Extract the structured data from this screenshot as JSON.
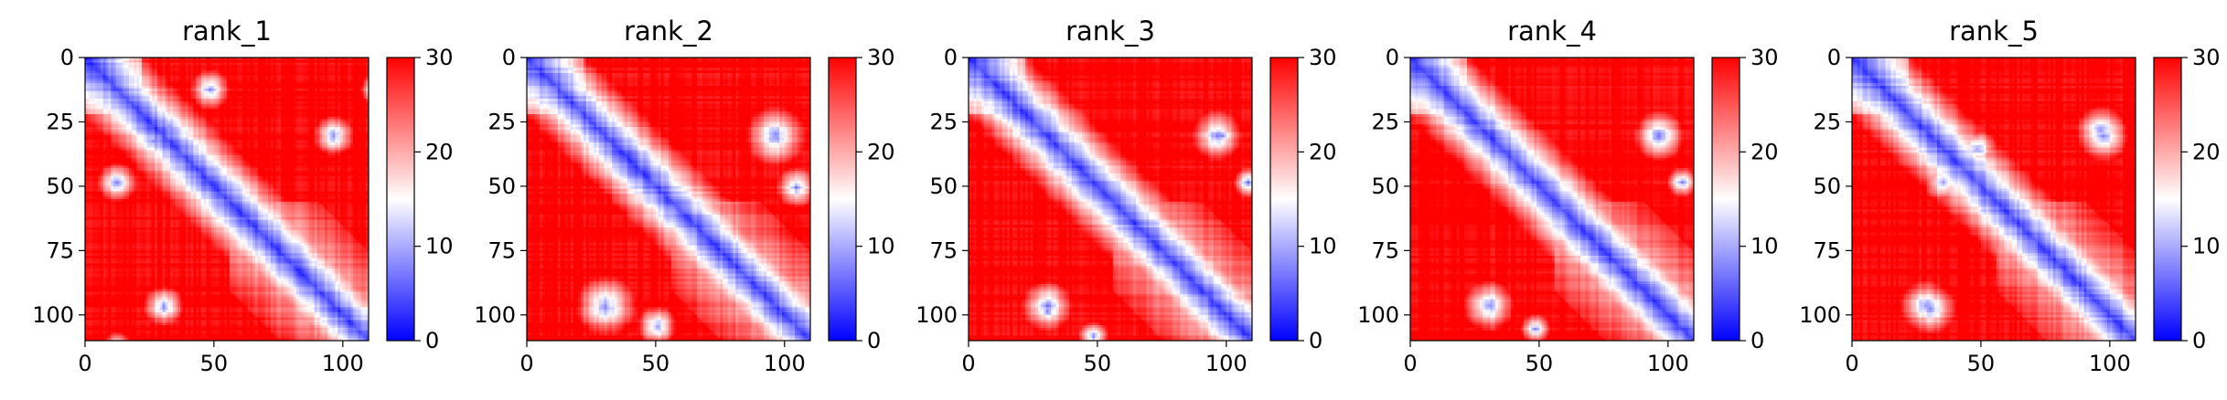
{
  "chart_data": [
    {
      "type": "heatmap",
      "title": "rank_1",
      "xlabel": "",
      "ylabel": "",
      "x_ticks": [
        "0",
        "50",
        "100"
      ],
      "y_ticks": [
        "0",
        "25",
        "50",
        "75",
        "100"
      ],
      "xlim": [
        0,
        110
      ],
      "ylim": [
        110,
        0
      ],
      "colorbar": {
        "ticks": [
          "0",
          "10",
          "20",
          "30"
        ],
        "range": [
          0,
          30
        ],
        "colormap": [
          "#0000ff",
          "#ffffff",
          "#ff0000"
        ]
      }
    },
    {
      "type": "heatmap",
      "title": "rank_2",
      "xlabel": "",
      "ylabel": "",
      "x_ticks": [
        "0",
        "50",
        "100"
      ],
      "y_ticks": [
        "0",
        "25",
        "50",
        "75",
        "100"
      ],
      "xlim": [
        0,
        110
      ],
      "ylim": [
        110,
        0
      ],
      "colorbar": {
        "ticks": [
          "0",
          "10",
          "20",
          "30"
        ],
        "range": [
          0,
          30
        ],
        "colormap": [
          "#0000ff",
          "#ffffff",
          "#ff0000"
        ]
      }
    },
    {
      "type": "heatmap",
      "title": "rank_3",
      "xlabel": "",
      "ylabel": "",
      "x_ticks": [
        "0",
        "50",
        "100"
      ],
      "y_ticks": [
        "0",
        "25",
        "50",
        "75",
        "100"
      ],
      "xlim": [
        0,
        110
      ],
      "ylim": [
        110,
        0
      ],
      "colorbar": {
        "ticks": [
          "0",
          "10",
          "20",
          "30"
        ],
        "range": [
          0,
          30
        ],
        "colormap": [
          "#0000ff",
          "#ffffff",
          "#ff0000"
        ]
      }
    },
    {
      "type": "heatmap",
      "title": "rank_4",
      "xlabel": "",
      "ylabel": "",
      "x_ticks": [
        "0",
        "50",
        "100"
      ],
      "y_ticks": [
        "0",
        "25",
        "50",
        "75",
        "100"
      ],
      "xlim": [
        0,
        110
      ],
      "ylim": [
        110,
        0
      ],
      "colorbar": {
        "ticks": [
          "0",
          "10",
          "20",
          "30"
        ],
        "range": [
          0,
          30
        ],
        "colormap": [
          "#0000ff",
          "#ffffff",
          "#ff0000"
        ]
      }
    },
    {
      "type": "heatmap",
      "title": "rank_5",
      "xlabel": "",
      "ylabel": "",
      "x_ticks": [
        "0",
        "50",
        "100"
      ],
      "y_ticks": [
        "0",
        "25",
        "50",
        "75",
        "100"
      ],
      "xlim": [
        0,
        110
      ],
      "ylim": [
        110,
        0
      ],
      "colorbar": {
        "ticks": [
          "0",
          "10",
          "20",
          "30"
        ],
        "range": [
          0,
          30
        ],
        "colormap": [
          "#0000ff",
          "#ffffff",
          "#ff0000"
        ]
      }
    }
  ]
}
